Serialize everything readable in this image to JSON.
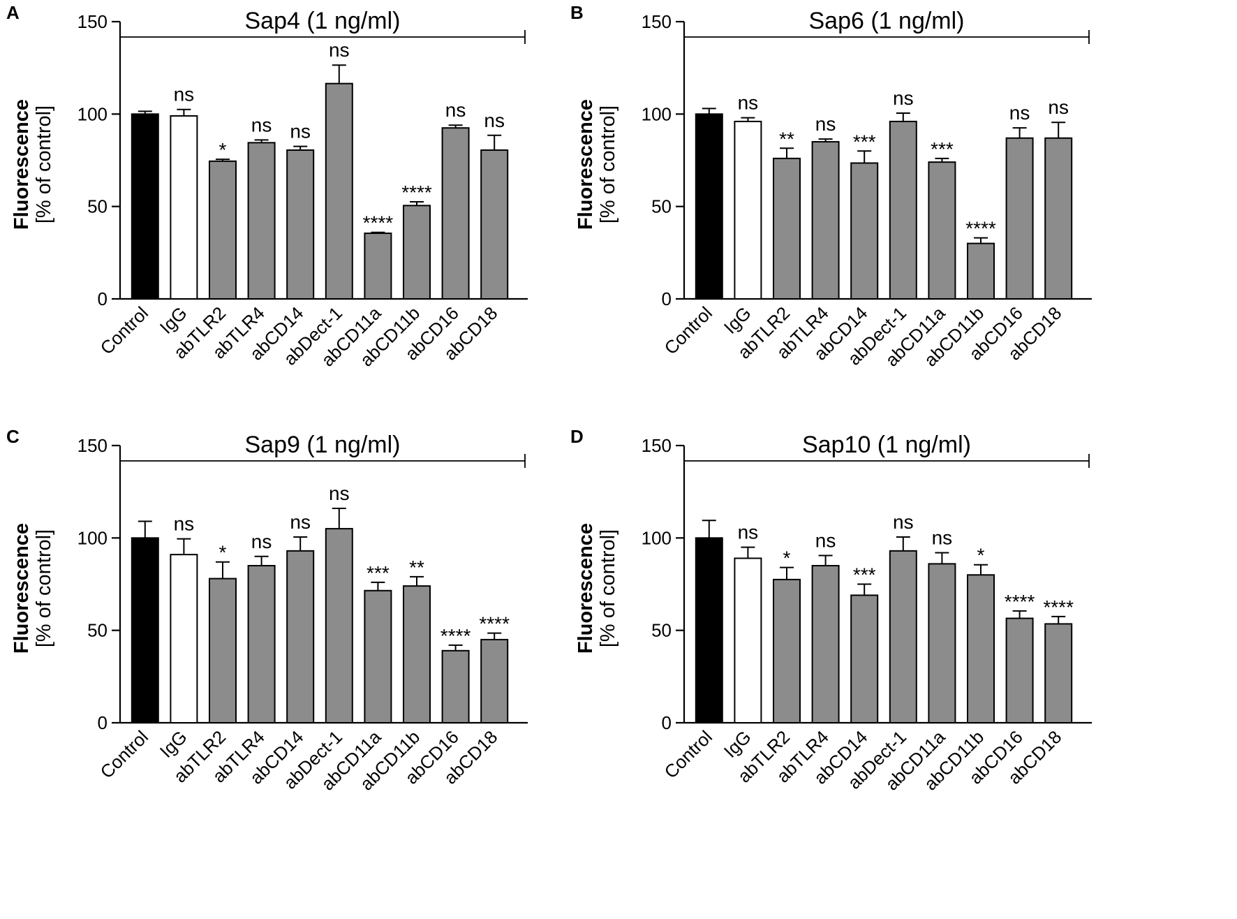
{
  "chart_data": [
    {
      "panel": "A",
      "type": "bar",
      "title": "Sap4 (1 ng/ml)",
      "ylabel": [
        "Fluorescence",
        "[% of control]"
      ],
      "categories": [
        "Control",
        "IgG",
        "abTLR2",
        "abTLR4",
        "abCD14",
        "abDect-1",
        "abCD11a",
        "abCD11b",
        "abCD16",
        "abCD18"
      ],
      "values": [
        100,
        99,
        74.5,
        84.5,
        80.5,
        116.5,
        35.5,
        50.5,
        92.5,
        80.5
      ],
      "errors": [
        1.5,
        3.5,
        1,
        1.5,
        2,
        10,
        0.5,
        2,
        1.5,
        8
      ],
      "significance": [
        "",
        "ns",
        "*",
        "ns",
        "ns",
        "ns",
        "****",
        "****",
        "ns",
        "ns"
      ],
      "ylim": [
        0,
        150
      ],
      "yticks": [
        0,
        50,
        100,
        150
      ]
    },
    {
      "panel": "B",
      "type": "bar",
      "title": "Sap6 (1 ng/ml)",
      "ylabel": [
        "Fluorescence",
        "[% of control]"
      ],
      "categories": [
        "Control",
        "IgG",
        "abTLR2",
        "abTLR4",
        "abCD14",
        "abDect-1",
        "abCD11a",
        "abCD11b",
        "abCD16",
        "abCD18"
      ],
      "values": [
        100,
        96,
        76,
        85,
        73.5,
        96,
        74,
        30,
        87,
        87
      ],
      "errors": [
        3,
        2,
        5.5,
        1.5,
        6.5,
        4.5,
        2,
        3,
        5.5,
        8.5
      ],
      "significance": [
        "",
        "ns",
        "**",
        "ns",
        "***",
        "ns",
        "***",
        "****",
        "ns",
        "ns"
      ],
      "ylim": [
        0,
        150
      ],
      "yticks": [
        0,
        50,
        100,
        150
      ]
    },
    {
      "panel": "C",
      "type": "bar",
      "title": "Sap9 (1 ng/ml)",
      "ylabel": [
        "Fluorescence",
        "[% of control]"
      ],
      "categories": [
        "Control",
        "IgG",
        "abTLR2",
        "abTLR4",
        "abCD14",
        "abDect-1",
        "abCD11a",
        "abCD11b",
        "abCD16",
        "abCD18"
      ],
      "values": [
        100,
        91,
        78,
        85,
        93,
        105,
        71.5,
        74,
        39,
        45
      ],
      "errors": [
        9,
        8.5,
        9,
        5,
        7.5,
        11,
        4.5,
        5,
        3,
        3.5
      ],
      "significance": [
        "",
        "ns",
        "*",
        "ns",
        "ns",
        "ns",
        "***",
        "**",
        "****",
        "****"
      ],
      "ylim": [
        0,
        150
      ],
      "yticks": [
        0,
        50,
        100,
        150
      ]
    },
    {
      "panel": "D",
      "type": "bar",
      "title": "Sap10 (1 ng/ml)",
      "ylabel": [
        "Fluorescence",
        "[% of control]"
      ],
      "categories": [
        "Control",
        "IgG",
        "abTLR2",
        "abTLR4",
        "abCD14",
        "abDect-1",
        "abCD11a",
        "abCD11b",
        "abCD16",
        "abCD18"
      ],
      "values": [
        100,
        89,
        77.5,
        85,
        69,
        93,
        86,
        80,
        56.5,
        53.5
      ],
      "errors": [
        9.5,
        6,
        6.5,
        5.5,
        6,
        7.5,
        6,
        5.5,
        4,
        4
      ],
      "significance": [
        "",
        "ns",
        "*",
        "ns",
        "***",
        "ns",
        "ns",
        "*",
        "****",
        "****"
      ],
      "ylim": [
        0,
        150
      ],
      "yticks": [
        0,
        50,
        100,
        150
      ]
    }
  ],
  "colors": {
    "control": "#000000",
    "igg": "#ffffff",
    "treatment": "#8c8c8c",
    "axis": "#000000"
  }
}
